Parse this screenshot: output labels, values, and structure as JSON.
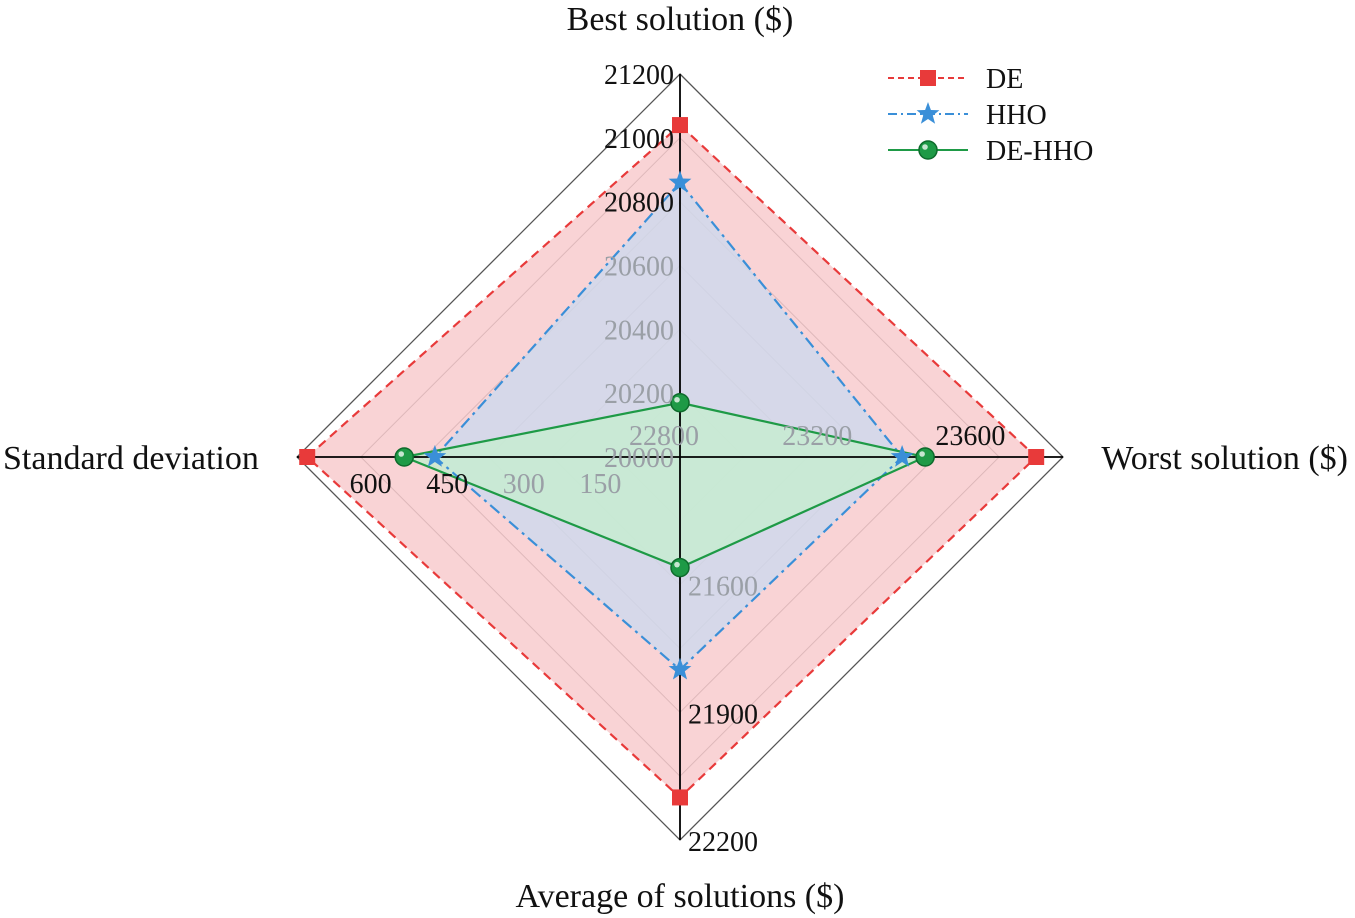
{
  "chart_data": {
    "type": "radar",
    "axes": [
      {
        "label": "Best solution ($)",
        "min": 20000,
        "max": 21200,
        "ticks": [
          20000,
          20200,
          20400,
          20600,
          20800,
          21000,
          21200
        ]
      },
      {
        "label": "Worst solution ($)",
        "min": 22800,
        "max": 23800,
        "ticks": [
          22800,
          23200,
          23600
        ]
      },
      {
        "label": "Average of solutions ($)",
        "min": 21300,
        "max": 22200,
        "ticks": [
          21600,
          21900,
          22200
        ]
      },
      {
        "label": "Standard deviation",
        "min": 0,
        "max": 750,
        "ticks": [
          150,
          300,
          450,
          600
        ]
      }
    ],
    "series": [
      {
        "name": "DE",
        "values": [
          21040,
          23730,
          22100,
          730
        ],
        "color": "#e83a3a",
        "fill": "#f7c8cb",
        "marker": "square",
        "line": "dashed"
      },
      {
        "name": "HHO",
        "values": [
          20860,
          23380,
          21800,
          480
        ],
        "color": "#3a8fd8",
        "fill": "#cdd9ee",
        "marker": "star",
        "line": "dash-dot"
      },
      {
        "name": "DE-HHO",
        "values": [
          20170,
          23440,
          21560,
          540
        ],
        "color": "#1e9a46",
        "fill": "#c6edcf",
        "marker": "circle",
        "line": "solid"
      }
    ],
    "legend_position": "top-right"
  }
}
